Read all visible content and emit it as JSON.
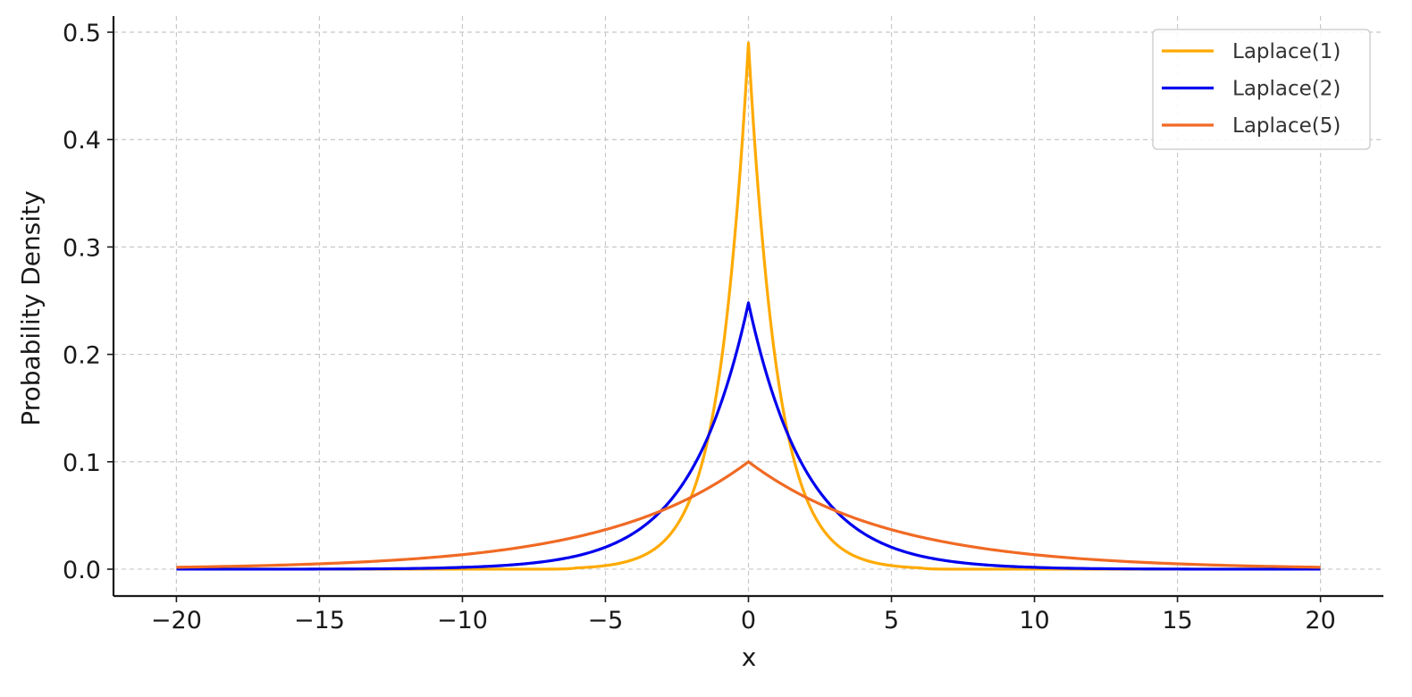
{
  "chart_data": {
    "type": "line",
    "title": "",
    "xlabel": "x",
    "ylabel": "Probability Density",
    "xlim": [
      -22.2,
      22.2
    ],
    "ylim": [
      -0.025,
      0.515
    ],
    "x_ticks": [
      -20,
      -15,
      -10,
      -5,
      0,
      5,
      10,
      15,
      20
    ],
    "x_tick_labels": [
      "−20",
      "−15",
      "−10",
      "−5",
      "0",
      "5",
      "10",
      "15",
      "20"
    ],
    "y_ticks": [
      0.0,
      0.1,
      0.2,
      0.3,
      0.4,
      0.5
    ],
    "y_tick_labels": [
      "0.0",
      "0.1",
      "0.2",
      "0.3",
      "0.4",
      "0.5"
    ],
    "grid": true,
    "legend_position": "top-right",
    "x_range": [
      -20,
      20
    ],
    "series": [
      {
        "name": "Laplace(1)",
        "color": "#FFAA00",
        "x": [
          -20,
          -10,
          -6,
          -4,
          -3,
          -2,
          -1,
          -0.5,
          0,
          0.5,
          1,
          2,
          3,
          4,
          6,
          10,
          20
        ],
        "y": [
          0.0,
          0.0,
          0.0012,
          0.0092,
          0.0249,
          0.0677,
          0.1839,
          0.3033,
          0.49,
          0.3033,
          0.1839,
          0.0677,
          0.0249,
          0.0092,
          0.0012,
          0.0,
          0.0
        ]
      },
      {
        "name": "Laplace(2)",
        "color": "#0000EE",
        "x": [
          -20,
          -15,
          -10,
          -8,
          -6,
          -4,
          -3,
          -2,
          -1,
          0,
          1,
          2,
          3,
          4,
          6,
          8,
          10,
          15,
          20
        ],
        "y": [
          0.0,
          0.0001,
          0.0017,
          0.0046,
          0.0124,
          0.0338,
          0.0558,
          0.092,
          0.1516,
          0.248,
          0.1516,
          0.092,
          0.0558,
          0.0338,
          0.0124,
          0.0046,
          0.0017,
          0.0001,
          0.0
        ]
      },
      {
        "name": "Laplace(5)",
        "color": "#F06A24",
        "x": [
          -20,
          -15,
          -10,
          -7.5,
          -5,
          -3,
          -2,
          -1,
          0,
          1,
          2,
          3,
          5,
          7.5,
          10,
          15,
          20
        ],
        "y": [
          0.0018,
          0.005,
          0.0135,
          0.0223,
          0.0368,
          0.0549,
          0.067,
          0.0819,
          0.1,
          0.0819,
          0.067,
          0.0549,
          0.0368,
          0.0223,
          0.0135,
          0.005,
          0.0018
        ]
      }
    ]
  }
}
